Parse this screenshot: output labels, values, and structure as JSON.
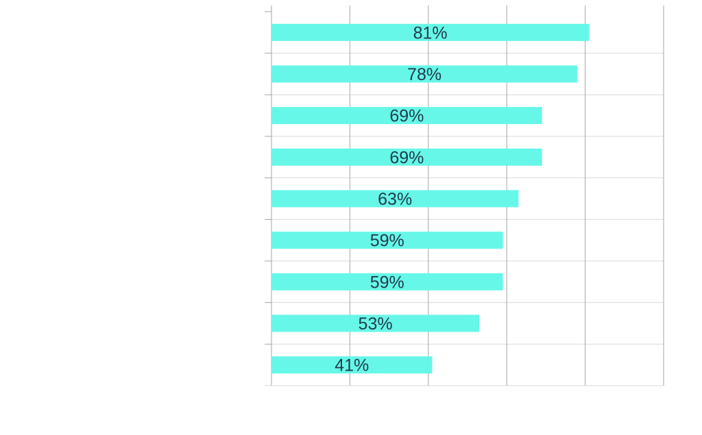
{
  "chart_data": {
    "type": "bar",
    "orientation": "horizontal",
    "title": "",
    "xlabel": "",
    "ylabel": "",
    "categories": [
      "",
      "",
      "",
      "",
      "",
      "",
      "",
      "",
      ""
    ],
    "values": [
      81,
      78,
      69,
      69,
      63,
      59,
      59,
      53,
      41
    ],
    "data_labels": [
      "81%",
      "78%",
      "69%",
      "69%",
      "63%",
      "59%",
      "59%",
      "53%",
      "41%"
    ],
    "xlim": [
      0,
      100
    ],
    "x_gridlines": [
      0,
      20,
      40,
      60,
      80,
      100
    ],
    "grid": true,
    "legend": "none",
    "colors": {
      "bar": "#66F7E8",
      "label": "#1F3A4A",
      "vgrid": "#A6A6A6",
      "hgrid": "#D9D9D9",
      "axis": "#A6A6A6"
    }
  }
}
